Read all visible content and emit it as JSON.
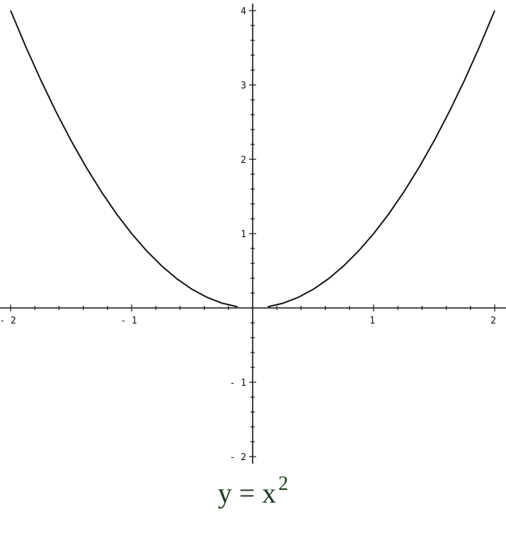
{
  "chart_data": {
    "type": "line",
    "title_main": "y = x",
    "title_exponent": "2",
    "xlim": [
      -2,
      2
    ],
    "ylim": [
      -2,
      4
    ],
    "x_ticks": [
      -2,
      -1,
      1,
      2
    ],
    "y_ticks": [
      -2,
      -1,
      1,
      2,
      3,
      4
    ],
    "minor_tick_step": 0.2,
    "grid": false,
    "line_color": "#111111",
    "caption_color": "#1e3a1e",
    "series": [
      {
        "points": [
          [
            -2,
            4
          ],
          [
            -1.875,
            3.5156
          ],
          [
            -1.75,
            3.0625
          ],
          [
            -1.625,
            2.6406
          ],
          [
            -1.5,
            2.25
          ],
          [
            -1.375,
            1.8906
          ],
          [
            -1.25,
            1.5625
          ],
          [
            -1.125,
            1.2656
          ],
          [
            -1,
            1
          ],
          [
            -0.875,
            0.7656
          ],
          [
            -0.75,
            0.5625
          ],
          [
            -0.625,
            0.3906
          ],
          [
            -0.5,
            0.25
          ],
          [
            -0.375,
            0.1406
          ],
          [
            -0.25,
            0.0625
          ],
          [
            -0.125,
            0.0156
          ]
        ]
      },
      {
        "points": [
          [
            0.125,
            0.0156
          ],
          [
            0.25,
            0.0625
          ],
          [
            0.375,
            0.1406
          ],
          [
            0.5,
            0.25
          ],
          [
            0.625,
            0.3906
          ],
          [
            0.75,
            0.5625
          ],
          [
            0.875,
            0.7656
          ],
          [
            1,
            1
          ],
          [
            1.125,
            1.2656
          ],
          [
            1.25,
            1.5625
          ],
          [
            1.375,
            1.8906
          ],
          [
            1.5,
            2.25
          ],
          [
            1.625,
            2.6406
          ],
          [
            1.75,
            3.0625
          ],
          [
            1.875,
            3.5156
          ],
          [
            2,
            4
          ]
        ]
      }
    ]
  }
}
